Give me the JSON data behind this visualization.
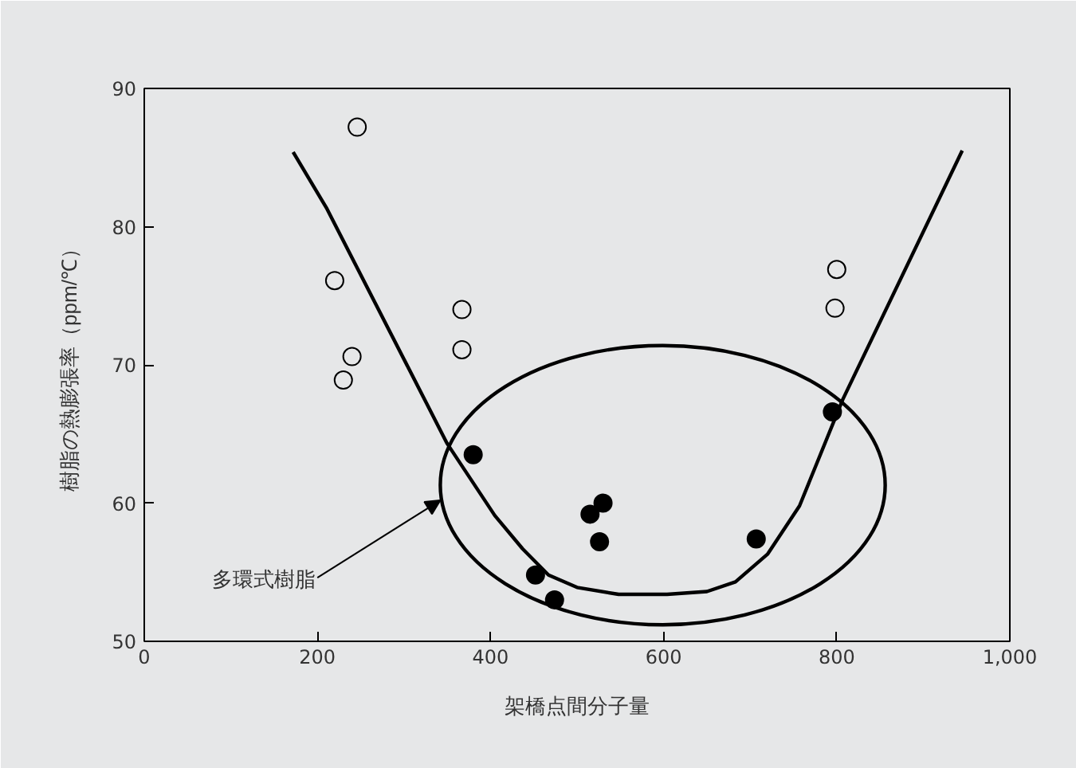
{
  "chart_data": {
    "type": "scatter",
    "xlabel": "架橋点間分子量",
    "ylabel": "樹脂の熱膨張率（ppm/℃）",
    "xlim": [
      0,
      1000
    ],
    "ylim": [
      50,
      90
    ],
    "xticks": [
      0,
      200,
      400,
      600,
      800,
      {
        "value": 1000,
        "label": "1,000"
      }
    ],
    "yticks": [
      50,
      60,
      70,
      80,
      90
    ],
    "grid": false,
    "annotations": [
      "多環式樹脂"
    ],
    "series": [
      {
        "marker": "circle",
        "color": "#e6e7e8",
        "x": [
          246,
          220,
          240,
          230,
          367,
          367,
          800,
          798
        ],
        "values": [
          87.2,
          76.1,
          70.6,
          68.9,
          74.0,
          71.1,
          76.9,
          74.1
        ]
      },
      {
        "marker": "circle",
        "color": "#000000",
        "x": [
          380,
          452,
          474,
          515,
          530,
          526,
          707,
          795
        ],
        "values": [
          63.5,
          54.8,
          53.0,
          59.2,
          60.0,
          57.2,
          57.4,
          66.6
        ]
      },
      {
        "type": "line",
        "color": "#000000",
        "x": [
          172,
          211,
          350,
          405,
          437,
          467,
          500,
          548,
          604,
          650,
          683,
          720,
          757,
          807,
          945
        ],
        "values": [
          85.4,
          81.3,
          64.3,
          59.1,
          56.7,
          54.8,
          53.9,
          53.4,
          53.4,
          53.6,
          54.3,
          56.3,
          59.8,
          67.5,
          85.5
        ]
      }
    ]
  }
}
